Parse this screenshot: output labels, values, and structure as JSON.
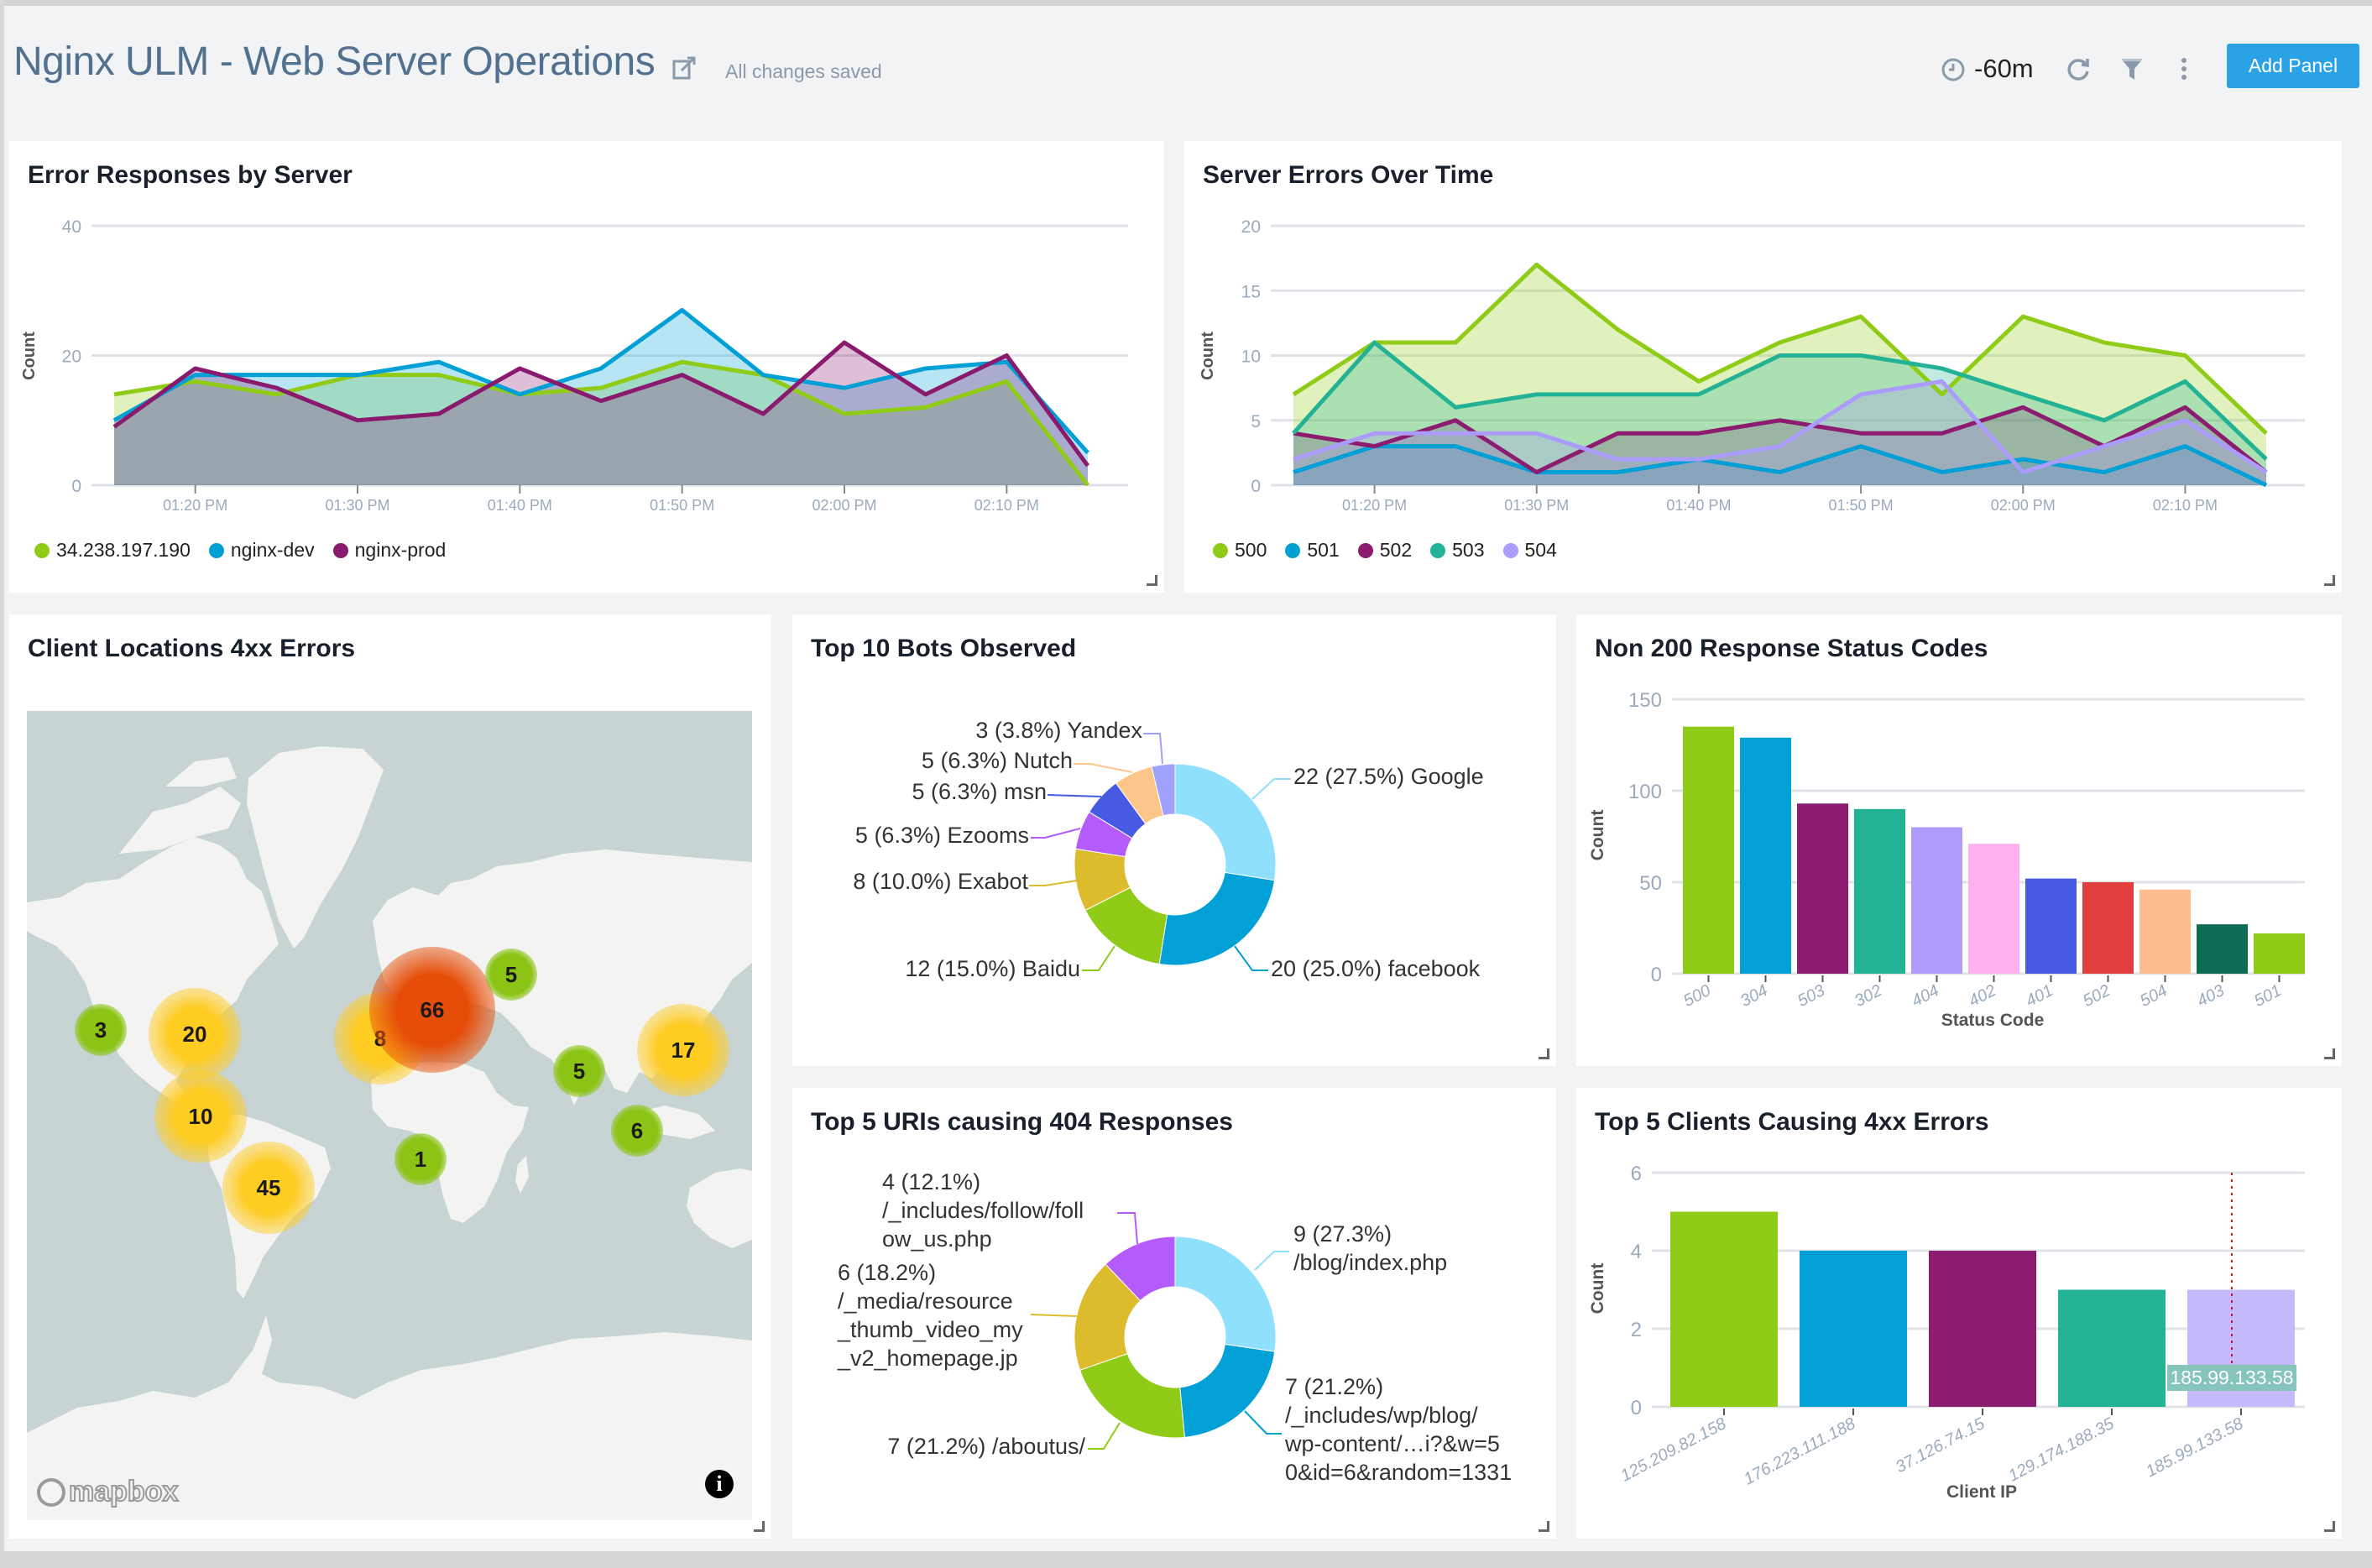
{
  "header": {
    "title": "Nginx ULM - Web Server Operations",
    "save_status": "All changes saved",
    "time_range": "-60m",
    "add_panel_label": "Add Panel",
    "accent_color": "#2ba2e6",
    "icons": [
      "edit-icon",
      "clock-icon",
      "refresh-icon",
      "filter-icon",
      "more-vertical-icon"
    ]
  },
  "panels": {
    "error_responses": {
      "title": "Error Responses by Server"
    },
    "server_errors": {
      "title": "Server Errors Over Time"
    },
    "client_locations": {
      "title": "Client Locations 4xx Errors",
      "attribution": "mapbox",
      "info_label": "i",
      "clusters": [
        {
          "count": "3",
          "level": "low"
        },
        {
          "count": "20",
          "level": "medium"
        },
        {
          "count": "8",
          "level": "medium"
        },
        {
          "count": "66",
          "level": "high"
        },
        {
          "count": "5",
          "level": "low"
        },
        {
          "count": "5",
          "level": "low"
        },
        {
          "count": "17",
          "level": "medium"
        },
        {
          "count": "10",
          "level": "medium"
        },
        {
          "count": "45",
          "level": "medium"
        },
        {
          "count": "1",
          "level": "low"
        },
        {
          "count": "6",
          "level": "low"
        }
      ]
    },
    "bots": {
      "title": "Top 10 Bots Observed"
    },
    "status_codes": {
      "title": "Non 200 Response Status Codes"
    },
    "uris": {
      "title": "Top 5 URIs causing 404 Responses"
    },
    "clients": {
      "title": "Top 5 Clients Causing 4xx Errors",
      "tooltip": "185.99.133.58"
    }
  },
  "chart_data": [
    {
      "id": "error_responses",
      "type": "area",
      "ylabel": "Count",
      "ylim": [
        0,
        40
      ],
      "yticks": [
        "0",
        "20",
        "40"
      ],
      "x": [
        "01:15 PM",
        "01:20 PM",
        "01:25 PM",
        "01:30 PM",
        "01:35 PM",
        "01:40 PM",
        "01:45 PM",
        "01:50 PM",
        "01:55 PM",
        "02:00 PM",
        "02:05 PM",
        "02:10 PM",
        "02:15 PM"
      ],
      "xtick_labels": [
        "01:20 PM",
        "01:30 PM",
        "01:40 PM",
        "01:50 PM",
        "02:00 PM",
        "02:10 PM"
      ],
      "grid": true,
      "legend": "bottom-left",
      "series": [
        {
          "name": "34.238.197.190",
          "color": "#8fcb17",
          "values": [
            14,
            16,
            14,
            17,
            17,
            14,
            15,
            19,
            17,
            11,
            12,
            16,
            0
          ]
        },
        {
          "name": "nginx-dev",
          "color": "#00a0d6",
          "values": [
            10,
            17,
            17,
            17,
            19,
            14,
            18,
            27,
            17,
            15,
            18,
            19,
            5
          ]
        },
        {
          "name": "nginx-prod",
          "color": "#8a1a6e",
          "values": [
            9,
            18,
            15,
            10,
            11,
            18,
            13,
            17,
            11,
            22,
            14,
            20,
            3
          ]
        }
      ]
    },
    {
      "id": "server_errors",
      "type": "area",
      "ylabel": "Count",
      "ylim": [
        0,
        20
      ],
      "yticks": [
        "0",
        "5",
        "10",
        "15",
        "20"
      ],
      "x": [
        "01:15 PM",
        "01:20 PM",
        "01:25 PM",
        "01:30 PM",
        "01:35 PM",
        "01:40 PM",
        "01:45 PM",
        "01:50 PM",
        "01:55 PM",
        "02:00 PM",
        "02:05 PM",
        "02:10 PM",
        "02:15 PM"
      ],
      "xtick_labels": [
        "01:20 PM",
        "01:30 PM",
        "01:40 PM",
        "01:50 PM",
        "02:00 PM",
        "02:10 PM"
      ],
      "grid": true,
      "legend": "bottom-left",
      "series": [
        {
          "name": "500",
          "color": "#8fcb17",
          "values": [
            7,
            11,
            11,
            17,
            12,
            8,
            11,
            13,
            7,
            13,
            11,
            10,
            4
          ]
        },
        {
          "name": "501",
          "color": "#00a0d6",
          "values": [
            1,
            3,
            3,
            1,
            1,
            2,
            1,
            3,
            1,
            2,
            1,
            3,
            0
          ]
        },
        {
          "name": "502",
          "color": "#8b1c6f",
          "values": [
            4,
            3,
            5,
            1,
            4,
            4,
            5,
            4,
            4,
            6,
            3,
            6,
            1
          ]
        },
        {
          "name": "503",
          "color": "#23b394",
          "values": [
            4,
            11,
            6,
            7,
            7,
            7,
            10,
            10,
            9,
            7,
            5,
            8,
            2
          ]
        },
        {
          "name": "504",
          "color": "#ab9cfb",
          "values": [
            2,
            4,
            4,
            4,
            2,
            2,
            3,
            7,
            8,
            1,
            3,
            5,
            1
          ]
        }
      ]
    },
    {
      "id": "bots",
      "type": "pie",
      "donut": true,
      "slices": [
        {
          "label": "Google",
          "value": 22,
          "text": "22 (27.5%) Google",
          "color": "#8ee0fd"
        },
        {
          "label": "facebook",
          "value": 20,
          "text": "20 (25.0%) facebook",
          "color": "#01a0d6"
        },
        {
          "label": "Baidu",
          "value": 12,
          "text": "12 (15.0%) Baidu",
          "color": "#8fcb17"
        },
        {
          "label": "Exabot",
          "value": 8,
          "text": "8 (10.0%) Exabot",
          "color": "#dcbc2c"
        },
        {
          "label": "Ezooms",
          "value": 5,
          "text": "5 (6.3%) Ezooms",
          "color": "#b45cfb"
        },
        {
          "label": "msn",
          "value": 5,
          "text": "5 (6.3%) msn",
          "color": "#465be2"
        },
        {
          "label": "Nutch",
          "value": 5,
          "text": "5 (6.3%) Nutch",
          "color": "#fcc68b"
        },
        {
          "label": "Yandex",
          "value": 3,
          "text": "3 (3.8%) Yandex",
          "color": "#9fa1fd"
        }
      ]
    },
    {
      "id": "status_codes",
      "type": "bar",
      "xlabel": "Status Code",
      "ylabel": "Count",
      "ylim": [
        0,
        150
      ],
      "yticks": [
        "0",
        "50",
        "100",
        "150"
      ],
      "categories": [
        "500",
        "304",
        "503",
        "302",
        "404",
        "402",
        "401",
        "502",
        "504",
        "403",
        "501"
      ],
      "values": [
        135,
        129,
        93,
        90,
        80,
        71,
        52,
        50,
        46,
        27,
        22
      ],
      "colors": [
        "#8fcb17",
        "#01a0d6",
        "#8b1c6f",
        "#23b394",
        "#ae9bfc",
        "#fdb1ef",
        "#465be2",
        "#e03d3d",
        "#febc8f",
        "#0e6b56",
        "#8fcb17"
      ],
      "grid": true
    },
    {
      "id": "uris",
      "type": "pie",
      "donut": true,
      "slices": [
        {
          "label": "/blog/index.php",
          "value": 9,
          "lines": [
            "9 (27.3%)",
            "/blog/index.php"
          ],
          "color": "#8ee0fd"
        },
        {
          "label": "/_includes/wp/blog/wp-content/...i?&w=50&id=6&random=1331",
          "value": 7,
          "lines": [
            "7 (21.2%)",
            "/_includes/wp/blog/",
            "wp-content/…i?&w=5",
            "0&id=6&random=1331"
          ],
          "color": "#01a0d6"
        },
        {
          "label": "/aboutus/",
          "value": 7,
          "lines": [
            "7 (21.2%) /aboutus/"
          ],
          "color": "#8fcb17"
        },
        {
          "label": "/_media/resource_thumb_video_my_v2_homepage.jp",
          "value": 6,
          "lines": [
            "6 (18.2%)",
            "/_media/resource",
            "_thumb_video_my",
            "_v2_homepage.jp"
          ],
          "color": "#dcbc2c"
        },
        {
          "label": "/_includes/follow/follow_us.php",
          "value": 4,
          "lines": [
            "4 (12.1%)",
            "/_includes/follow/foll",
            "ow_us.php"
          ],
          "color": "#b45cfb"
        }
      ]
    },
    {
      "id": "clients",
      "type": "bar",
      "xlabel": "Client IP",
      "ylabel": "Count",
      "ylim": [
        0,
        6
      ],
      "yticks": [
        "0",
        "2",
        "4",
        "6"
      ],
      "categories": [
        "125.209.82.158",
        "176.223.111.188",
        "37.126.74.15",
        "129.174.188.35",
        "185.99.133.58"
      ],
      "values": [
        5,
        4,
        4,
        3,
        3
      ],
      "colors": [
        "#8fcb17",
        "#01a0d6",
        "#8b1c6f",
        "#23b394",
        "#c6b9fc"
      ],
      "grid": true
    }
  ]
}
